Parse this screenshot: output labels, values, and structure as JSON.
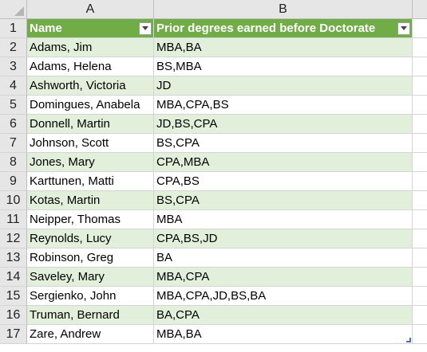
{
  "sheet": {
    "columns": [
      "A",
      "B"
    ],
    "header": {
      "row_number": "1",
      "col_a": "Name",
      "col_b": "Prior degrees earned before Doctorate"
    },
    "rows": [
      {
        "num": "2",
        "name": "Adams, Jim",
        "degrees": "MBA,BA"
      },
      {
        "num": "3",
        "name": "Adams, Helena",
        "degrees": "BS,MBA"
      },
      {
        "num": "4",
        "name": "Ashworth, Victoria",
        "degrees": "JD"
      },
      {
        "num": "5",
        "name": "Domingues, Anabela",
        "degrees": "MBA,CPA,BS"
      },
      {
        "num": "6",
        "name": "Donnell, Martin",
        "degrees": "JD,BS,CPA"
      },
      {
        "num": "7",
        "name": "Johnson, Scott",
        "degrees": "BS,CPA"
      },
      {
        "num": "8",
        "name": "Jones, Mary",
        "degrees": "CPA,MBA"
      },
      {
        "num": "9",
        "name": "Karttunen, Matti",
        "degrees": "CPA,BS"
      },
      {
        "num": "10",
        "name": "Kotas, Martin",
        "degrees": "BS,CPA"
      },
      {
        "num": "11",
        "name": "Neipper, Thomas",
        "degrees": "MBA"
      },
      {
        "num": "12",
        "name": "Reynolds, Lucy",
        "degrees": "CPA,BS,JD"
      },
      {
        "num": "13",
        "name": "Robinson, Greg",
        "degrees": "BA"
      },
      {
        "num": "14",
        "name": "Saveley, Mary",
        "degrees": "MBA,CPA"
      },
      {
        "num": "15",
        "name": "Sergienko, John",
        "degrees": "MBA,CPA,JD,BS,BA"
      },
      {
        "num": "16",
        "name": "Truman, Bernard",
        "degrees": "BA,CPA"
      },
      {
        "num": "17",
        "name": "Zare, Andrew",
        "degrees": "MBA,BA"
      }
    ],
    "colors": {
      "table_header": "#70ad47",
      "band": "#e2efda"
    }
  }
}
